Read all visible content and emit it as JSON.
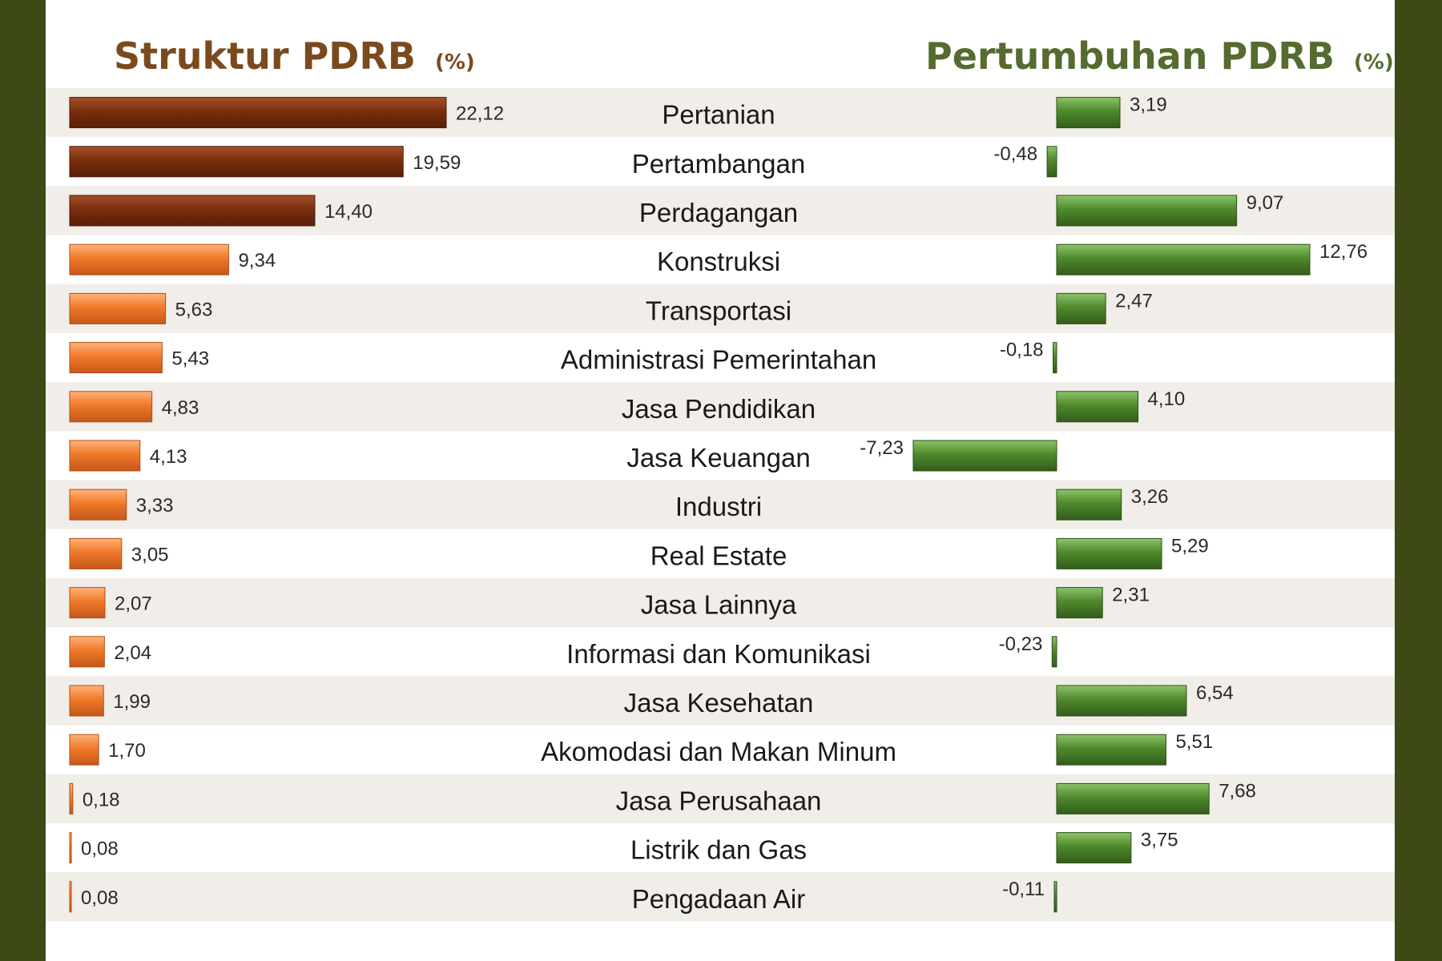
{
  "chart_data": [
    {
      "type": "bar",
      "orientation": "horizontal",
      "title": "Struktur PDRB",
      "unit": "(%)",
      "categories": [
        "Pertanian",
        "Pertambangan",
        "Perdagangan",
        "Konstruksi",
        "Transportasi",
        "Administrasi Pemerintahan",
        "Jasa Pendidikan",
        "Jasa Keuangan",
        "Industri",
        "Real Estate",
        "Jasa Lainnya",
        "Informasi dan Komunikasi",
        "Jasa Kesehatan",
        "Akomodasi dan Makan Minum",
        "Jasa Perusahaan",
        "Listrik dan Gas",
        "Pengadaan Air"
      ],
      "values": [
        22.12,
        19.59,
        14.4,
        9.34,
        5.63,
        5.43,
        4.83,
        4.13,
        3.33,
        3.05,
        2.07,
        2.04,
        1.99,
        1.7,
        0.18,
        0.08,
        0.08
      ],
      "value_labels": [
        "22,12",
        "19,59",
        "14,40",
        "9,34",
        "5,63",
        "5,43",
        "4,83",
        "4,13",
        "3,33",
        "3,05",
        "2,07",
        "2,04",
        "1,99",
        "1,70",
        "0,18",
        "0,08",
        "0,08"
      ],
      "colors": {
        "top3": "#8b3a14",
        "rest": "#f07a2a",
        "title": "#7a4a1e"
      }
    },
    {
      "type": "bar",
      "orientation": "horizontal",
      "title": "Pertumbuhan PDRB",
      "unit": "(%)",
      "categories": [
        "Pertanian",
        "Pertambangan",
        "Perdagangan",
        "Konstruksi",
        "Transportasi",
        "Administrasi Pemerintahan",
        "Jasa Pendidikan",
        "Jasa Keuangan",
        "Industri",
        "Real Estate",
        "Jasa Lainnya",
        "Informasi dan Komunikasi",
        "Jasa Kesehatan",
        "Akomodasi dan Makan Minum",
        "Jasa Perusahaan",
        "Listrik dan Gas",
        "Pengadaan Air"
      ],
      "values": [
        3.19,
        -0.48,
        9.07,
        12.76,
        2.47,
        -0.18,
        4.1,
        -7.23,
        3.26,
        5.29,
        2.31,
        -0.23,
        6.54,
        5.51,
        7.68,
        3.75,
        -0.11
      ],
      "value_labels": [
        "3,19",
        "-0,48",
        "9,07",
        "12,76",
        "2,47",
        "-0,18",
        "4,10",
        "-7,23",
        "3,26",
        "5,29",
        "2,31",
        "-0,23",
        "6,54",
        "5,51",
        "7,68",
        "3,75",
        "-0,11"
      ],
      "colors": {
        "bar": "#4f8a2c",
        "title": "#556b2f"
      }
    }
  ],
  "colors": {
    "frame": "#3d4a16",
    "stripe": "#f1ede8",
    "background": "#ffffff"
  }
}
